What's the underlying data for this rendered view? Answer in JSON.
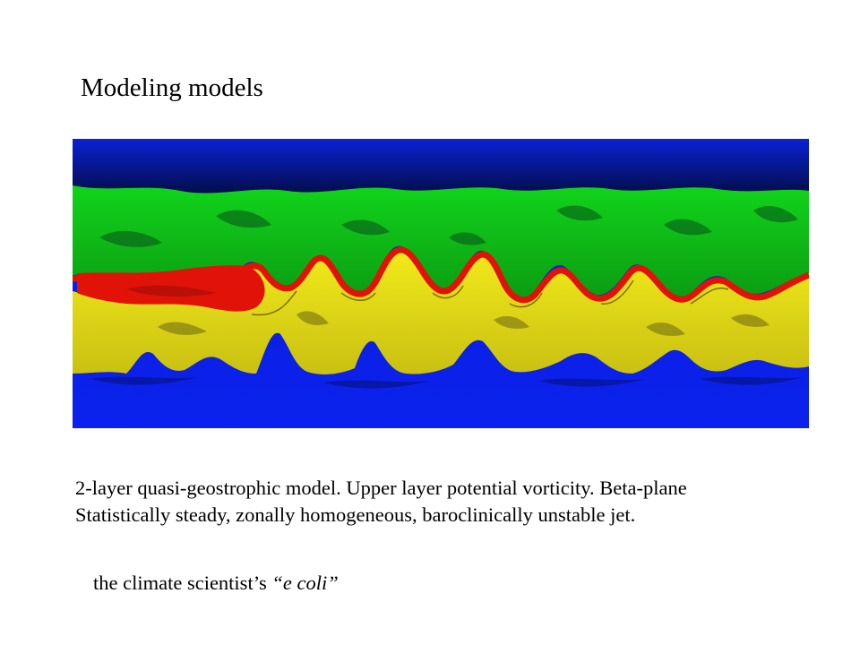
{
  "slide": {
    "title": "Modeling models",
    "caption_line1": "2-layer quasi-geostrophic model. Upper layer potential vorticity. Beta-plane",
    "caption_line2": "Statistically steady, zonally homogeneous, baroclinically unstable jet.",
    "note_prefix": "the climate scientist’s ",
    "note_italic": "“e coli”"
  },
  "figure": {
    "description_colors": {
      "dark_blue": "#030a4e",
      "blue": "#0a1fe0",
      "green": "#12c81a",
      "dark_green": "#064a10",
      "red": "#e0100a",
      "yellow": "#ece418",
      "dark_yellow": "#5a5210"
    }
  }
}
